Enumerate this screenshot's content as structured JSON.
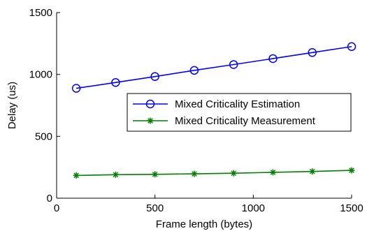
{
  "chart_data": {
    "type": "line",
    "title": "",
    "xlabel": "Frame length (bytes)",
    "ylabel": "Delay (us)",
    "xlim": [
      0,
      1500
    ],
    "ylim": [
      0,
      1500
    ],
    "xticks": [
      0,
      500,
      1000,
      1500
    ],
    "yticks": [
      0,
      500,
      1000,
      1500
    ],
    "grid": false,
    "legend_position": "center-right",
    "x": [
      100,
      300,
      500,
      700,
      900,
      1100,
      1300,
      1500
    ],
    "series": [
      {
        "name": "Mixed Criticality Estimation",
        "color": "#0000ff",
        "marker": "circle",
        "values": [
          888,
          935,
          983,
          1033,
          1080,
          1128,
          1177,
          1225
        ]
      },
      {
        "name": "Mixed Criticality Measurement",
        "color": "#007f00",
        "marker": "asterisk",
        "values": [
          184,
          190,
          193,
          197,
          202,
          209,
          216,
          225
        ]
      }
    ]
  }
}
